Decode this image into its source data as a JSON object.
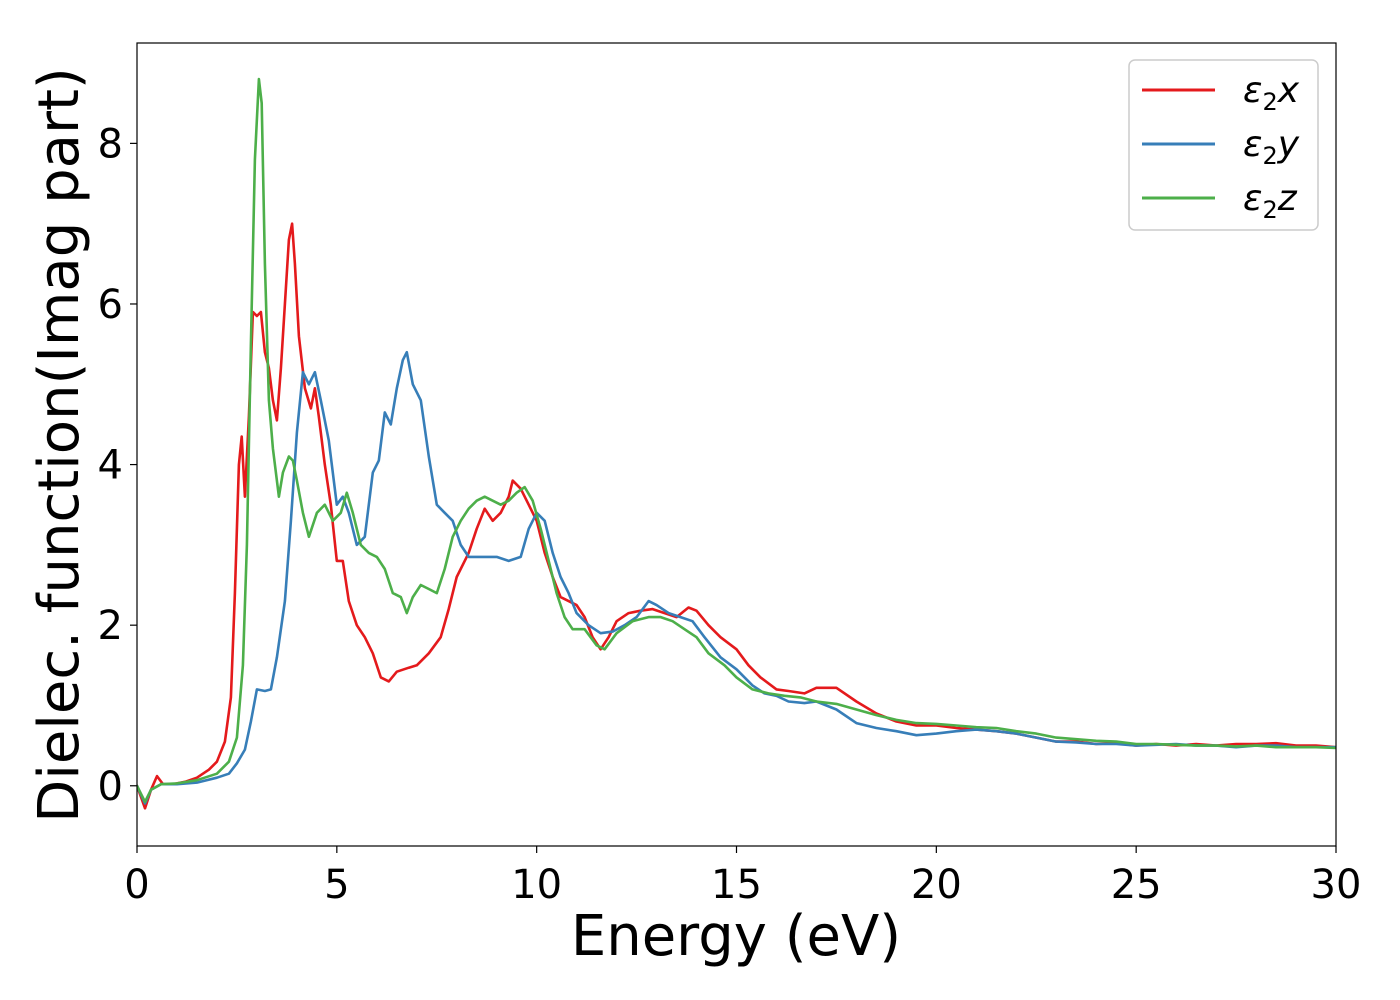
{
  "chart_data": {
    "type": "line",
    "xlabel": "Energy (eV)",
    "ylabel": "Dielec. function(Imag part)",
    "xlim": [
      0,
      30
    ],
    "ylim": [
      -0.75,
      9.25
    ],
    "xticks": [
      0,
      5,
      10,
      15,
      20,
      25,
      30
    ],
    "yticks": [
      0,
      2,
      4,
      6,
      8
    ],
    "grid": false,
    "legend_position": "top-right",
    "series": [
      {
        "name": "ε2x",
        "legend": {
          "base": "ε",
          "sub": "2",
          "var": "x"
        },
        "color": "#e41a1c",
        "points": [
          [
            0,
            0
          ],
          [
            0.2,
            -0.28
          ],
          [
            0.35,
            -0.05
          ],
          [
            0.5,
            0.12
          ],
          [
            0.65,
            0.02
          ],
          [
            0.9,
            0.02
          ],
          [
            1.2,
            0.05
          ],
          [
            1.5,
            0.1
          ],
          [
            1.8,
            0.2
          ],
          [
            2.0,
            0.3
          ],
          [
            2.2,
            0.55
          ],
          [
            2.35,
            1.1
          ],
          [
            2.45,
            2.4
          ],
          [
            2.55,
            4.0
          ],
          [
            2.62,
            4.35
          ],
          [
            2.7,
            3.6
          ],
          [
            2.8,
            4.6
          ],
          [
            2.9,
            5.9
          ],
          [
            3.0,
            5.85
          ],
          [
            3.1,
            5.9
          ],
          [
            3.2,
            5.4
          ],
          [
            3.3,
            5.2
          ],
          [
            3.4,
            4.8
          ],
          [
            3.5,
            4.55
          ],
          [
            3.6,
            5.2
          ],
          [
            3.7,
            6.0
          ],
          [
            3.8,
            6.8
          ],
          [
            3.88,
            7.0
          ],
          [
            3.95,
            6.5
          ],
          [
            4.05,
            5.6
          ],
          [
            4.2,
            4.95
          ],
          [
            4.35,
            4.7
          ],
          [
            4.45,
            4.95
          ],
          [
            4.55,
            4.6
          ],
          [
            4.7,
            4.0
          ],
          [
            4.85,
            3.5
          ],
          [
            5.0,
            2.8
          ],
          [
            5.15,
            2.8
          ],
          [
            5.3,
            2.3
          ],
          [
            5.5,
            2.0
          ],
          [
            5.7,
            1.85
          ],
          [
            5.9,
            1.65
          ],
          [
            6.1,
            1.35
          ],
          [
            6.3,
            1.3
          ],
          [
            6.5,
            1.42
          ],
          [
            6.8,
            1.47
          ],
          [
            7.0,
            1.5
          ],
          [
            7.3,
            1.65
          ],
          [
            7.6,
            1.85
          ],
          [
            7.8,
            2.2
          ],
          [
            8.0,
            2.6
          ],
          [
            8.3,
            2.9
          ],
          [
            8.5,
            3.2
          ],
          [
            8.7,
            3.45
          ],
          [
            8.9,
            3.3
          ],
          [
            9.1,
            3.4
          ],
          [
            9.3,
            3.6
          ],
          [
            9.4,
            3.8
          ],
          [
            9.6,
            3.7
          ],
          [
            9.8,
            3.5
          ],
          [
            10.0,
            3.3
          ],
          [
            10.2,
            2.9
          ],
          [
            10.4,
            2.6
          ],
          [
            10.6,
            2.35
          ],
          [
            10.8,
            2.3
          ],
          [
            11.0,
            2.25
          ],
          [
            11.2,
            2.1
          ],
          [
            11.4,
            1.85
          ],
          [
            11.6,
            1.7
          ],
          [
            11.8,
            1.85
          ],
          [
            12.0,
            2.05
          ],
          [
            12.3,
            2.15
          ],
          [
            12.6,
            2.18
          ],
          [
            12.9,
            2.2
          ],
          [
            13.2,
            2.15
          ],
          [
            13.5,
            2.1
          ],
          [
            13.8,
            2.22
          ],
          [
            14.0,
            2.18
          ],
          [
            14.3,
            2.0
          ],
          [
            14.6,
            1.85
          ],
          [
            15.0,
            1.7
          ],
          [
            15.3,
            1.5
          ],
          [
            15.6,
            1.35
          ],
          [
            16.0,
            1.2
          ],
          [
            16.3,
            1.18
          ],
          [
            16.7,
            1.15
          ],
          [
            17.0,
            1.22
          ],
          [
            17.5,
            1.22
          ],
          [
            18.0,
            1.05
          ],
          [
            18.5,
            0.9
          ],
          [
            19.0,
            0.8
          ],
          [
            19.5,
            0.75
          ],
          [
            20.0,
            0.75
          ],
          [
            20.5,
            0.72
          ],
          [
            21.0,
            0.7
          ],
          [
            21.5,
            0.68
          ],
          [
            22.0,
            0.65
          ],
          [
            22.5,
            0.6
          ],
          [
            23.0,
            0.55
          ],
          [
            23.5,
            0.55
          ],
          [
            24.0,
            0.52
          ],
          [
            24.5,
            0.53
          ],
          [
            25.0,
            0.5
          ],
          [
            25.5,
            0.52
          ],
          [
            26.0,
            0.5
          ],
          [
            26.5,
            0.52
          ],
          [
            27.0,
            0.5
          ],
          [
            27.5,
            0.52
          ],
          [
            28.0,
            0.52
          ],
          [
            28.5,
            0.53
          ],
          [
            29.0,
            0.5
          ],
          [
            29.5,
            0.5
          ],
          [
            30.0,
            0.48
          ]
        ]
      },
      {
        "name": "ε2y",
        "legend": {
          "base": "ε",
          "sub": "2",
          "var": "y"
        },
        "color": "#377eb8",
        "points": [
          [
            0,
            0
          ],
          [
            0.2,
            -0.22
          ],
          [
            0.35,
            -0.05
          ],
          [
            0.6,
            0.02
          ],
          [
            1.0,
            0.02
          ],
          [
            1.5,
            0.04
          ],
          [
            2.0,
            0.1
          ],
          [
            2.3,
            0.15
          ],
          [
            2.5,
            0.28
          ],
          [
            2.7,
            0.45
          ],
          [
            2.85,
            0.8
          ],
          [
            3.0,
            1.2
          ],
          [
            3.2,
            1.18
          ],
          [
            3.35,
            1.2
          ],
          [
            3.5,
            1.6
          ],
          [
            3.7,
            2.3
          ],
          [
            3.85,
            3.3
          ],
          [
            4.0,
            4.4
          ],
          [
            4.15,
            5.15
          ],
          [
            4.3,
            5.0
          ],
          [
            4.45,
            5.15
          ],
          [
            4.6,
            4.8
          ],
          [
            4.8,
            4.3
          ],
          [
            5.0,
            3.5
          ],
          [
            5.15,
            3.6
          ],
          [
            5.3,
            3.4
          ],
          [
            5.5,
            3.0
          ],
          [
            5.7,
            3.1
          ],
          [
            5.9,
            3.9
          ],
          [
            6.05,
            4.05
          ],
          [
            6.2,
            4.65
          ],
          [
            6.35,
            4.5
          ],
          [
            6.5,
            4.95
          ],
          [
            6.65,
            5.3
          ],
          [
            6.75,
            5.4
          ],
          [
            6.9,
            5.0
          ],
          [
            7.1,
            4.8
          ],
          [
            7.3,
            4.1
          ],
          [
            7.5,
            3.5
          ],
          [
            7.7,
            3.4
          ],
          [
            7.9,
            3.3
          ],
          [
            8.1,
            3.0
          ],
          [
            8.3,
            2.85
          ],
          [
            8.5,
            2.85
          ],
          [
            8.8,
            2.85
          ],
          [
            9.0,
            2.85
          ],
          [
            9.3,
            2.8
          ],
          [
            9.6,
            2.85
          ],
          [
            9.8,
            3.2
          ],
          [
            10.0,
            3.4
          ],
          [
            10.2,
            3.3
          ],
          [
            10.4,
            2.9
          ],
          [
            10.6,
            2.6
          ],
          [
            10.8,
            2.4
          ],
          [
            11.0,
            2.15
          ],
          [
            11.3,
            2.0
          ],
          [
            11.6,
            1.9
          ],
          [
            11.9,
            1.92
          ],
          [
            12.2,
            2.0
          ],
          [
            12.5,
            2.1
          ],
          [
            12.8,
            2.3
          ],
          [
            13.0,
            2.25
          ],
          [
            13.3,
            2.15
          ],
          [
            13.6,
            2.1
          ],
          [
            13.9,
            2.05
          ],
          [
            14.2,
            1.85
          ],
          [
            14.6,
            1.6
          ],
          [
            15.0,
            1.45
          ],
          [
            15.4,
            1.25
          ],
          [
            15.7,
            1.15
          ],
          [
            16.0,
            1.12
          ],
          [
            16.3,
            1.05
          ],
          [
            16.7,
            1.03
          ],
          [
            17.0,
            1.05
          ],
          [
            17.5,
            0.95
          ],
          [
            18.0,
            0.78
          ],
          [
            18.5,
            0.72
          ],
          [
            19.0,
            0.68
          ],
          [
            19.5,
            0.63
          ],
          [
            20.0,
            0.65
          ],
          [
            20.5,
            0.68
          ],
          [
            21.0,
            0.7
          ],
          [
            21.5,
            0.68
          ],
          [
            22.0,
            0.65
          ],
          [
            22.5,
            0.6
          ],
          [
            23.0,
            0.55
          ],
          [
            23.5,
            0.54
          ],
          [
            24.0,
            0.52
          ],
          [
            24.5,
            0.52
          ],
          [
            25.0,
            0.5
          ],
          [
            25.5,
            0.51
          ],
          [
            26.0,
            0.52
          ],
          [
            26.5,
            0.5
          ],
          [
            27.0,
            0.5
          ],
          [
            27.5,
            0.48
          ],
          [
            28.0,
            0.5
          ],
          [
            28.5,
            0.5
          ],
          [
            29.0,
            0.48
          ],
          [
            29.5,
            0.48
          ],
          [
            30.0,
            0.48
          ]
        ]
      },
      {
        "name": "ε2z",
        "legend": {
          "base": "ε",
          "sub": "2",
          "var": "z"
        },
        "color": "#4daf4a",
        "points": [
          [
            0,
            0
          ],
          [
            0.2,
            -0.2
          ],
          [
            0.35,
            -0.05
          ],
          [
            0.6,
            0.02
          ],
          [
            1.0,
            0.03
          ],
          [
            1.5,
            0.07
          ],
          [
            2.0,
            0.15
          ],
          [
            2.3,
            0.3
          ],
          [
            2.5,
            0.6
          ],
          [
            2.65,
            1.5
          ],
          [
            2.75,
            3.0
          ],
          [
            2.85,
            5.5
          ],
          [
            2.95,
            7.8
          ],
          [
            3.05,
            8.8
          ],
          [
            3.12,
            8.5
          ],
          [
            3.2,
            6.5
          ],
          [
            3.3,
            4.8
          ],
          [
            3.4,
            4.2
          ],
          [
            3.55,
            3.6
          ],
          [
            3.65,
            3.9
          ],
          [
            3.8,
            4.1
          ],
          [
            3.9,
            4.05
          ],
          [
            4.0,
            3.8
          ],
          [
            4.15,
            3.4
          ],
          [
            4.3,
            3.1
          ],
          [
            4.5,
            3.4
          ],
          [
            4.7,
            3.5
          ],
          [
            4.9,
            3.3
          ],
          [
            5.1,
            3.4
          ],
          [
            5.25,
            3.65
          ],
          [
            5.4,
            3.4
          ],
          [
            5.6,
            3.0
          ],
          [
            5.8,
            2.9
          ],
          [
            6.0,
            2.85
          ],
          [
            6.2,
            2.7
          ],
          [
            6.4,
            2.4
          ],
          [
            6.6,
            2.35
          ],
          [
            6.75,
            2.15
          ],
          [
            6.9,
            2.35
          ],
          [
            7.1,
            2.5
          ],
          [
            7.3,
            2.45
          ],
          [
            7.5,
            2.4
          ],
          [
            7.7,
            2.7
          ],
          [
            7.9,
            3.1
          ],
          [
            8.1,
            3.3
          ],
          [
            8.3,
            3.45
          ],
          [
            8.5,
            3.55
          ],
          [
            8.7,
            3.6
          ],
          [
            8.9,
            3.55
          ],
          [
            9.1,
            3.5
          ],
          [
            9.3,
            3.55
          ],
          [
            9.5,
            3.65
          ],
          [
            9.7,
            3.72
          ],
          [
            9.9,
            3.55
          ],
          [
            10.1,
            3.2
          ],
          [
            10.3,
            2.8
          ],
          [
            10.5,
            2.4
          ],
          [
            10.7,
            2.1
          ],
          [
            10.9,
            1.95
          ],
          [
            11.2,
            1.95
          ],
          [
            11.5,
            1.75
          ],
          [
            11.7,
            1.7
          ],
          [
            12.0,
            1.9
          ],
          [
            12.4,
            2.05
          ],
          [
            12.8,
            2.1
          ],
          [
            13.1,
            2.1
          ],
          [
            13.4,
            2.05
          ],
          [
            13.7,
            1.95
          ],
          [
            14.0,
            1.85
          ],
          [
            14.3,
            1.65
          ],
          [
            14.7,
            1.5
          ],
          [
            15.0,
            1.35
          ],
          [
            15.4,
            1.2
          ],
          [
            15.8,
            1.15
          ],
          [
            16.2,
            1.12
          ],
          [
            16.6,
            1.1
          ],
          [
            17.0,
            1.05
          ],
          [
            17.5,
            1.02
          ],
          [
            18.0,
            0.95
          ],
          [
            18.5,
            0.88
          ],
          [
            19.0,
            0.82
          ],
          [
            19.5,
            0.78
          ],
          [
            20.0,
            0.77
          ],
          [
            20.5,
            0.75
          ],
          [
            21.0,
            0.73
          ],
          [
            21.5,
            0.72
          ],
          [
            22.0,
            0.68
          ],
          [
            22.5,
            0.65
          ],
          [
            23.0,
            0.6
          ],
          [
            23.5,
            0.58
          ],
          [
            24.0,
            0.56
          ],
          [
            24.5,
            0.55
          ],
          [
            25.0,
            0.52
          ],
          [
            25.5,
            0.52
          ],
          [
            26.0,
            0.51
          ],
          [
            26.5,
            0.5
          ],
          [
            27.0,
            0.5
          ],
          [
            27.5,
            0.49
          ],
          [
            28.0,
            0.5
          ],
          [
            28.5,
            0.48
          ],
          [
            29.0,
            0.48
          ],
          [
            29.5,
            0.48
          ],
          [
            30.0,
            0.47
          ]
        ]
      }
    ]
  }
}
